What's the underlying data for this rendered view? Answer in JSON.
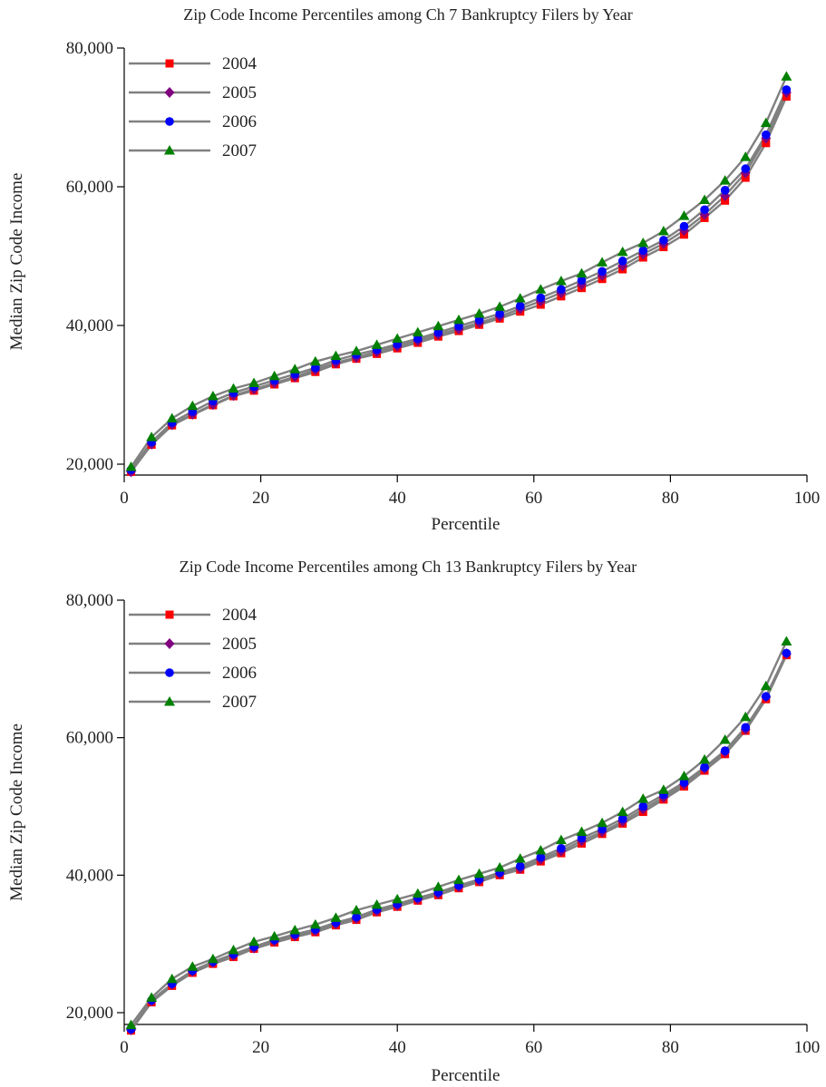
{
  "chart_data": [
    {
      "type": "line",
      "title": "Zip Code Income Percentiles among Ch 7 Bankruptcy Filers by Year",
      "xlabel": "Percentile",
      "ylabel": "Median Zip Code Income",
      "xlim": [
        0,
        100
      ],
      "ylim": [
        18000,
        80000
      ],
      "xticks": [
        0,
        20,
        40,
        60,
        80,
        100
      ],
      "xtick_labels": [
        "0",
        "20",
        "40",
        "60",
        "80",
        "100"
      ],
      "yticks": [
        20000,
        40000,
        60000,
        80000
      ],
      "ytick_labels": [
        "20,000",
        "40,000",
        "60,000",
        "80,000"
      ],
      "grid": false,
      "legend_position": "top-left",
      "line_color": "#808080",
      "x": [
        1,
        4,
        7,
        10,
        13,
        16,
        19,
        22,
        25,
        28,
        31,
        34,
        37,
        40,
        43,
        46,
        49,
        52,
        55,
        58,
        61,
        64,
        67,
        70,
        73,
        76,
        79,
        82,
        85,
        88,
        91,
        94,
        97
      ],
      "series": [
        {
          "name": "2004",
          "marker": "square",
          "color": "#ff0000",
          "values": [
            18900,
            22800,
            25600,
            27100,
            28500,
            29800,
            30600,
            31500,
            32400,
            33300,
            34400,
            35200,
            35900,
            36700,
            37500,
            38400,
            39200,
            40100,
            41000,
            42000,
            43000,
            44200,
            45400,
            46700,
            48100,
            49800,
            51300,
            53100,
            55500,
            58000,
            61300,
            66300,
            73000
          ]
        },
        {
          "name": "2005",
          "marker": "diamond",
          "color": "#800080",
          "values": [
            18900,
            22900,
            25700,
            27200,
            28600,
            29900,
            30800,
            31700,
            32600,
            33600,
            34600,
            35400,
            36200,
            37000,
            37800,
            38700,
            39500,
            40400,
            41300,
            42400,
            43500,
            44700,
            45900,
            47200,
            48600,
            50300,
            51800,
            53700,
            56000,
            58700,
            62000,
            67000,
            73600
          ]
        },
        {
          "name": "2006",
          "marker": "circle",
          "color": "#0000ff",
          "values": [
            19200,
            23200,
            26000,
            27600,
            29100,
            30300,
            31200,
            32100,
            33000,
            33900,
            35000,
            35800,
            36500,
            37300,
            38100,
            39000,
            39900,
            40800,
            41700,
            42800,
            44000,
            45200,
            46500,
            47800,
            49300,
            50800,
            52300,
            54300,
            56700,
            59500,
            62600,
            67500,
            74000
          ]
        },
        {
          "name": "2007",
          "marker": "triangle",
          "color": "#008000",
          "values": [
            19600,
            23900,
            26600,
            28400,
            29800,
            30900,
            31700,
            32700,
            33700,
            34800,
            35600,
            36300,
            37200,
            38100,
            39000,
            39900,
            40800,
            41700,
            42700,
            43900,
            45200,
            46400,
            47500,
            49100,
            50600,
            51900,
            53600,
            55800,
            58100,
            60900,
            64300,
            69200,
            75900
          ]
        }
      ]
    },
    {
      "type": "line",
      "title": "Zip Code Income Percentiles among Ch 13 Bankruptcy Filers by Year",
      "xlabel": "Percentile",
      "ylabel": "Median Zip Code Income",
      "xlim": [
        0,
        100
      ],
      "ylim": [
        17000,
        80000
      ],
      "xticks": [
        0,
        20,
        40,
        60,
        80,
        100
      ],
      "xtick_labels": [
        "0",
        "20",
        "40",
        "60",
        "80",
        "100"
      ],
      "yticks": [
        20000,
        40000,
        60000,
        80000
      ],
      "ytick_labels": [
        "20,000",
        "40,000",
        "60,000",
        "80,000"
      ],
      "grid": false,
      "legend_position": "top-left",
      "line_color": "#808080",
      "x": [
        1,
        4,
        7,
        10,
        13,
        16,
        19,
        22,
        25,
        28,
        31,
        34,
        37,
        40,
        43,
        46,
        49,
        52,
        55,
        58,
        61,
        64,
        67,
        70,
        73,
        76,
        79,
        82,
        85,
        88,
        91,
        94,
        97
      ],
      "series": [
        {
          "name": "2004",
          "marker": "square",
          "color": "#ff0000",
          "values": [
            17400,
            21500,
            23900,
            25800,
            27100,
            28100,
            29300,
            30200,
            31000,
            31700,
            32700,
            33500,
            34600,
            35400,
            36300,
            37100,
            38100,
            39000,
            40000,
            40800,
            42000,
            43200,
            44600,
            46000,
            47500,
            49200,
            51000,
            52900,
            55200,
            57600,
            61000,
            65600,
            72000
          ]
        },
        {
          "name": "2005",
          "marker": "diamond",
          "color": "#800080",
          "values": [
            17500,
            21700,
            24100,
            26000,
            27300,
            28300,
            29400,
            30400,
            31200,
            31900,
            32900,
            33700,
            34800,
            35600,
            36500,
            37300,
            38300,
            39200,
            40200,
            41000,
            42300,
            43500,
            45000,
            46300,
            47800,
            49600,
            51300,
            53200,
            55500,
            57900,
            61200,
            65900,
            72200
          ]
        },
        {
          "name": "2006",
          "marker": "circle",
          "color": "#0000ff",
          "values": [
            17600,
            21800,
            24200,
            26100,
            27400,
            28500,
            29600,
            30600,
            31400,
            32100,
            33100,
            33900,
            35000,
            35800,
            36700,
            37500,
            38500,
            39400,
            40400,
            41300,
            42600,
            43900,
            45400,
            46700,
            48200,
            50000,
            51700,
            53500,
            55700,
            58100,
            61500,
            66000,
            72300
          ]
        },
        {
          "name": "2007",
          "marker": "triangle",
          "color": "#008000",
          "values": [
            18200,
            22200,
            24900,
            26700,
            27800,
            29100,
            30300,
            31100,
            32000,
            32800,
            33800,
            34900,
            35700,
            36500,
            37300,
            38300,
            39300,
            40200,
            41100,
            42400,
            43600,
            45100,
            46300,
            47600,
            49200,
            51100,
            52400,
            54400,
            56800,
            59700,
            63000,
            67500,
            74000
          ]
        }
      ]
    }
  ]
}
